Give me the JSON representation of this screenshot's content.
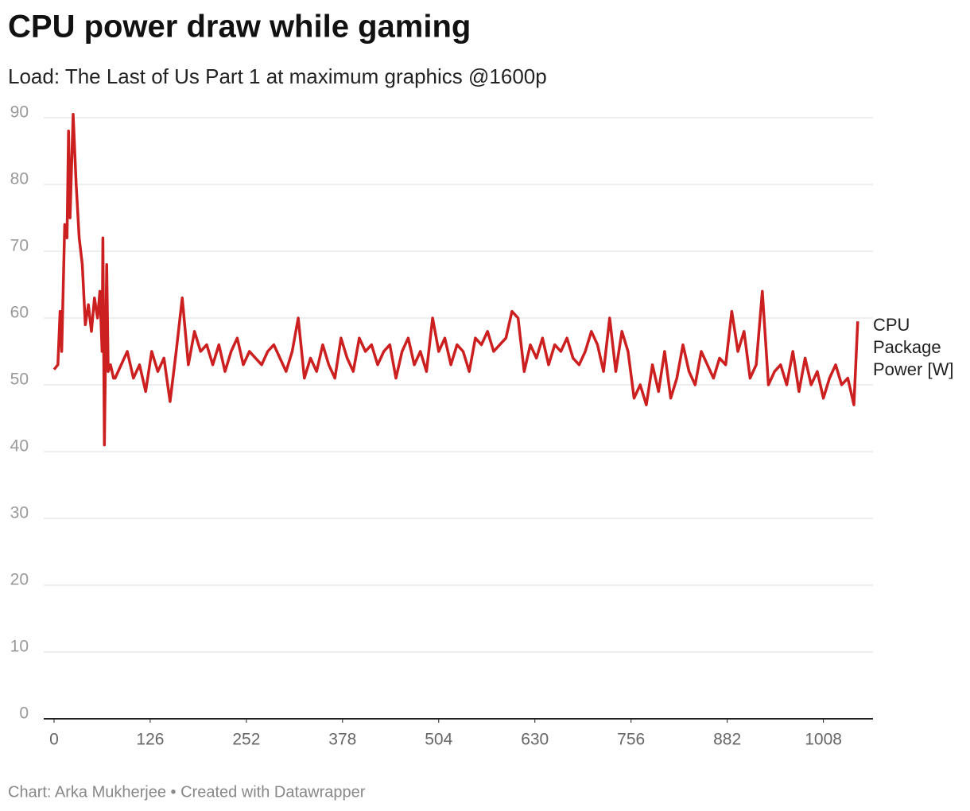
{
  "chart_data": {
    "type": "line",
    "title": "CPU power draw while gaming",
    "subtitle": "Load: The Last of Us Part 1 at maximum graphics @1600p",
    "footer": "Chart: Arka Mukherjee • Created with Datawrapper",
    "x": [
      0,
      5,
      8,
      10,
      14,
      17,
      19,
      21,
      25,
      29,
      33,
      37,
      41,
      45,
      49,
      53,
      57,
      60,
      63,
      64,
      66,
      69,
      71,
      74,
      78,
      80,
      88,
      96,
      104,
      112,
      120,
      128,
      136,
      144,
      152,
      160,
      168,
      176,
      184,
      192,
      200,
      208,
      216,
      224,
      232,
      240,
      248,
      256,
      264,
      272,
      280,
      288,
      296,
      304,
      312,
      320,
      328,
      336,
      344,
      352,
      360,
      368,
      376,
      384,
      392,
      400,
      408,
      416,
      424,
      432,
      440,
      448,
      456,
      464,
      472,
      480,
      488,
      496,
      504,
      512,
      520,
      528,
      536,
      544,
      552,
      560,
      568,
      576,
      584,
      592,
      600,
      608,
      616,
      624,
      632,
      640,
      648,
      656,
      664,
      672,
      680,
      688,
      696,
      704,
      712,
      720,
      728,
      736,
      744,
      752,
      760,
      768,
      776,
      784,
      792,
      800,
      808,
      816,
      824,
      832,
      840,
      848,
      856,
      864,
      872,
      880,
      888,
      896,
      904,
      912,
      920,
      928,
      936,
      944,
      952,
      960,
      968,
      976,
      984,
      992,
      1000,
      1008,
      1016,
      1024,
      1032,
      1040,
      1048,
      1053
    ],
    "series": [
      {
        "name": "CPU Package Power [W]",
        "color": "#cc1f1f",
        "values": [
          52.3,
          53,
          61,
          55,
          74,
          72,
          88,
          75,
          90.5,
          80,
          72,
          68,
          59,
          62,
          58,
          63,
          60,
          64,
          55,
          72,
          41,
          68,
          52,
          53,
          51,
          51,
          53,
          55,
          51,
          53,
          49,
          55,
          52,
          54,
          47.5,
          55,
          63,
          53,
          58,
          55,
          56,
          53,
          56,
          52,
          55,
          57,
          53,
          55,
          54,
          53,
          55,
          56,
          54,
          52,
          55,
          60,
          51,
          54,
          52,
          56,
          53,
          51,
          57,
          54,
          52,
          57,
          55,
          56,
          53,
          55,
          56,
          51,
          55,
          57,
          53,
          55,
          52,
          60,
          55,
          57,
          53,
          56,
          55,
          52,
          57,
          56,
          58,
          55,
          56,
          57,
          61,
          60,
          52,
          56,
          54,
          57,
          53,
          56,
          55,
          57,
          54,
          53,
          55,
          58,
          56,
          52,
          60,
          52,
          58,
          55,
          48,
          50,
          47,
          53,
          49,
          55,
          48,
          51,
          56,
          52,
          50,
          55,
          53,
          51,
          54,
          53,
          61,
          55,
          58,
          51,
          53,
          64,
          50,
          52,
          53,
          50,
          55,
          49,
          54,
          50,
          52,
          48,
          51,
          53,
          50,
          51,
          47,
          59.5
        ]
      }
    ],
    "xlim": [
      -13.5,
      1073
    ],
    "xticks": [
      0,
      126,
      252,
      378,
      504,
      630,
      756,
      882,
      1008
    ],
    "ylim": [
      0,
      90
    ],
    "yticks": [
      0,
      10,
      20,
      30,
      40,
      50,
      60,
      70,
      80,
      90
    ],
    "grid": true
  }
}
